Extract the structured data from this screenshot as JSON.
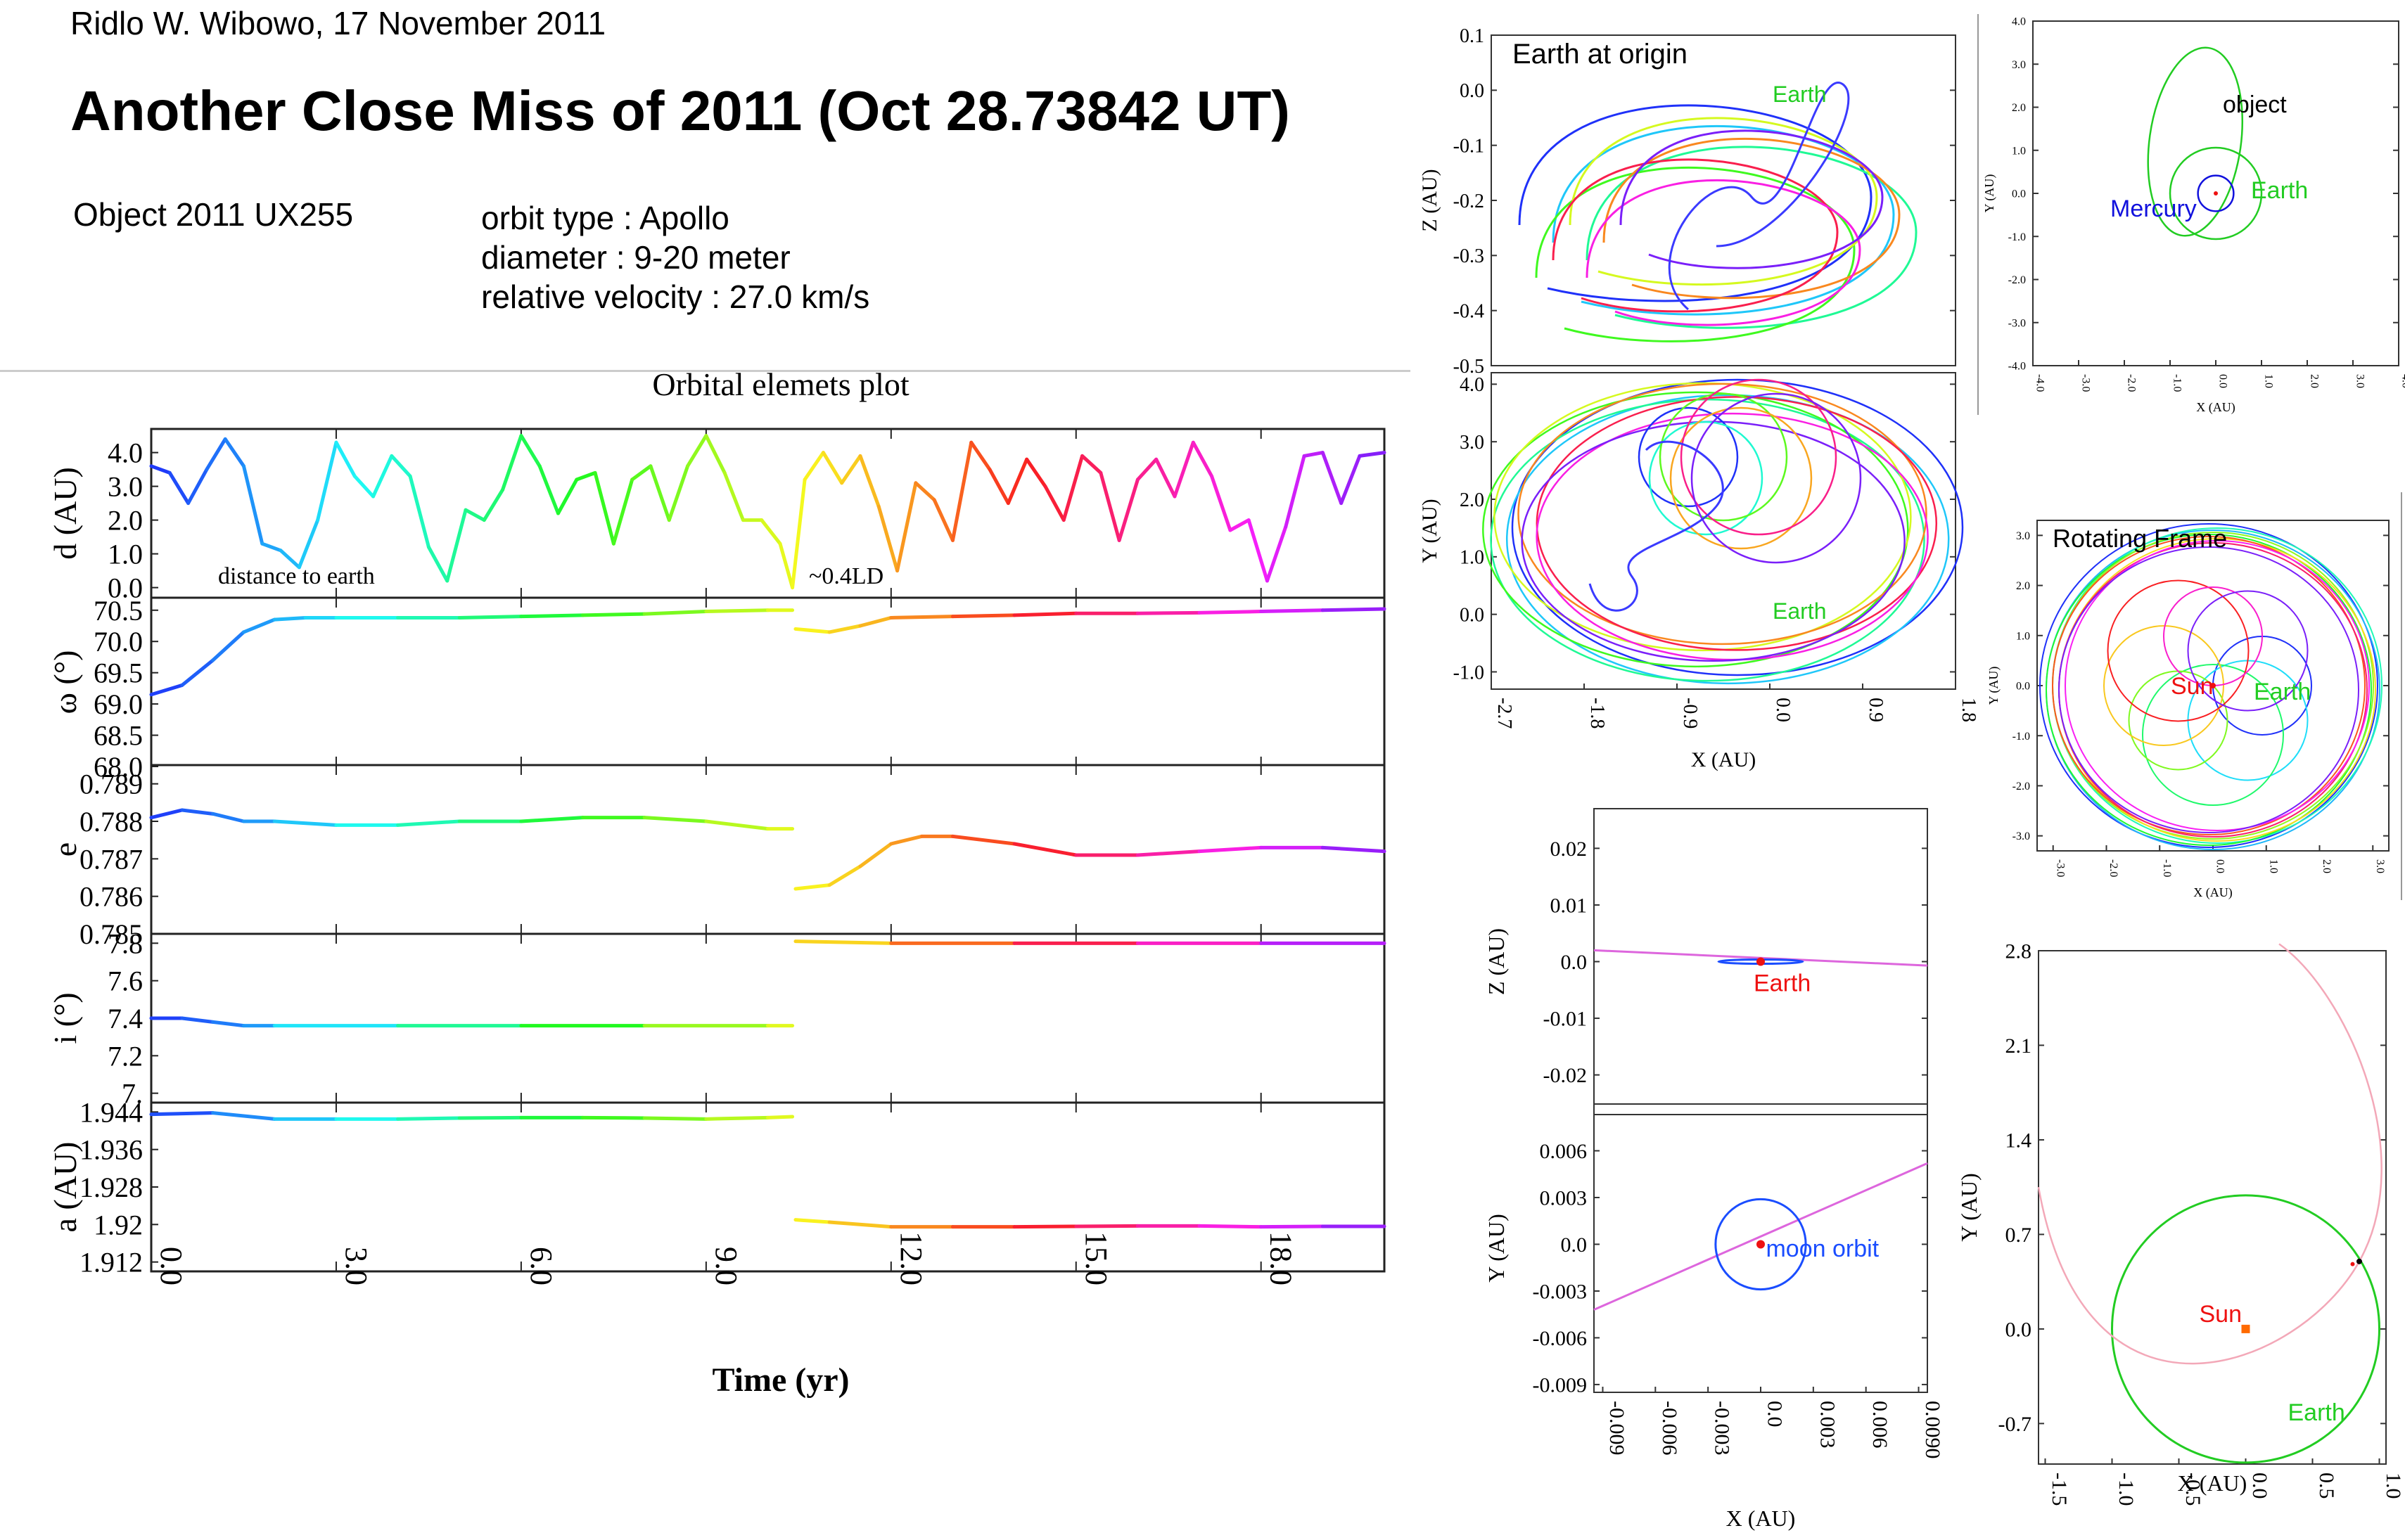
{
  "header": {
    "author_line": "Ridlo W. Wibowo, 17 November 2011",
    "title": "Another Close Miss of 2011 (Oct 28.73842 UT)",
    "object": "Object 2011 UX255",
    "orbit_type": "orbit type : Apollo",
    "diameter": "diameter  : 9-20 meter",
    "velocity": "relative velocity : 27.0 km/s"
  },
  "colors": {
    "hue_start": "#3a3aff",
    "hue_mid": "#ff2aa0",
    "hue_end": "#2fe88a",
    "earth_label": "#22cc22",
    "sun_label": "#ee1111",
    "mercury_label": "#1111dd",
    "moon_orbit": "#1a4dff",
    "object_path": "#dd66dd"
  },
  "chart_data": [
    {
      "id": "orbital_elements",
      "type": "line",
      "title": "Orbital elemets plot",
      "xlabel": "Time (yr)",
      "xlim": [
        0,
        20
      ],
      "xticks": [
        "0.0",
        "3.0",
        "6.0",
        "9.0",
        "12.0",
        "15.0",
        "18.0"
      ],
      "panels": [
        {
          "ylabel": "d (AU)",
          "ylim": [
            -0.3,
            4.7
          ],
          "yticks": [
            "4.0",
            "3.0",
            "2.0",
            "1.0",
            "0.0"
          ],
          "annotations": [
            "distance to earth",
            "~0.4LD"
          ],
          "x": [
            0,
            0.3,
            0.6,
            0.9,
            1.2,
            1.5,
            1.8,
            2.1,
            2.4,
            2.7,
            3.0,
            3.3,
            3.6,
            3.9,
            4.2,
            4.5,
            4.8,
            5.1,
            5.4,
            5.7,
            6.0,
            6.3,
            6.6,
            6.9,
            7.2,
            7.5,
            7.8,
            8.1,
            8.4,
            8.7,
            9.0,
            9.3,
            9.6,
            9.9,
            10.2,
            10.4,
            10.6,
            10.9,
            11.2,
            11.5,
            11.8,
            12.1,
            12.4,
            12.7,
            13.0,
            13.3,
            13.6,
            13.9,
            14.2,
            14.5,
            14.8,
            15.1,
            15.4,
            15.7,
            16.0,
            16.3,
            16.6,
            16.9,
            17.2,
            17.5,
            17.8,
            18.1,
            18.4,
            18.7,
            19.0,
            19.3,
            19.6,
            20.0
          ],
          "y": [
            3.6,
            3.4,
            2.5,
            3.5,
            4.4,
            3.6,
            1.3,
            1.1,
            0.6,
            2.0,
            4.3,
            3.3,
            2.7,
            3.9,
            3.3,
            1.2,
            0.2,
            2.3,
            2.0,
            2.9,
            4.5,
            3.6,
            2.2,
            3.2,
            3.4,
            1.3,
            3.2,
            3.6,
            2.0,
            3.6,
            4.5,
            3.4,
            2.0,
            2.0,
            1.3,
            0.0,
            3.2,
            4.0,
            3.1,
            3.9,
            2.4,
            0.5,
            3.1,
            2.6,
            1.4,
            4.3,
            3.5,
            2.5,
            3.8,
            3.0,
            2.0,
            3.9,
            3.4,
            1.4,
            3.2,
            3.8,
            2.7,
            4.3,
            3.3,
            1.7,
            2.0,
            0.2,
            1.8,
            3.9,
            4.0,
            2.5,
            3.9,
            4.0
          ]
        },
        {
          "ylabel": "ω (°)",
          "ylim": [
            68.0,
            70.7
          ],
          "yticks": [
            "70.5",
            "70.0",
            "69.5",
            "69.0",
            "68.5",
            "68.0"
          ],
          "x": [
            0,
            0.5,
            1.0,
            1.5,
            2.0,
            2.5,
            3.0,
            4.0,
            5.0,
            6.0,
            7.0,
            8.0,
            9.0,
            10.0,
            10.4,
            10.45,
            11.0,
            11.5,
            12.0,
            13.0,
            14.0,
            15.0,
            16.0,
            17.0,
            18.0,
            19.0,
            20.0
          ],
          "y": [
            69.15,
            69.3,
            69.7,
            70.15,
            70.35,
            70.38,
            70.38,
            70.38,
            70.38,
            70.4,
            70.42,
            70.44,
            70.48,
            70.5,
            70.5,
            70.2,
            70.15,
            70.25,
            70.38,
            70.4,
            70.42,
            70.45,
            70.45,
            70.46,
            70.48,
            70.5,
            70.52
          ]
        },
        {
          "ylabel": "e",
          "ylim": [
            0.785,
            0.7895
          ],
          "yticks": [
            "0.789",
            "0.788",
            "0.787",
            "0.786",
            "0.785"
          ],
          "x": [
            0,
            0.5,
            1.0,
            1.5,
            2.0,
            3.0,
            4.0,
            5.0,
            6.0,
            7.0,
            8.0,
            9.0,
            10.0,
            10.4,
            10.45,
            11.0,
            11.5,
            12.0,
            12.5,
            13.0,
            14.0,
            15.0,
            16.0,
            17.0,
            18.0,
            19.0,
            20.0
          ],
          "y": [
            0.7881,
            0.7883,
            0.7882,
            0.788,
            0.788,
            0.7879,
            0.7879,
            0.788,
            0.788,
            0.7881,
            0.7881,
            0.788,
            0.7878,
            0.7878,
            0.7862,
            0.7863,
            0.7868,
            0.7874,
            0.7876,
            0.7876,
            0.7874,
            0.7871,
            0.7871,
            0.7872,
            0.7873,
            0.7873,
            0.7872
          ]
        },
        {
          "ylabel": "i (°)",
          "ylim": [
            6.95,
            7.85
          ],
          "yticks": [
            "7.8",
            "7.6",
            "7.4",
            "7.2",
            "7."
          ],
          "x": [
            0,
            0.5,
            1.0,
            1.5,
            2.0,
            4.0,
            6.0,
            8.0,
            10.0,
            10.4,
            10.45,
            12.0,
            14.0,
            16.0,
            18.0,
            20.0
          ],
          "y": [
            7.4,
            7.4,
            7.38,
            7.36,
            7.36,
            7.36,
            7.36,
            7.36,
            7.36,
            7.36,
            7.81,
            7.8,
            7.8,
            7.8,
            7.8,
            7.8
          ]
        },
        {
          "ylabel": "a (AU)",
          "ylim": [
            1.91,
            1.946
          ],
          "yticks": [
            "1.944",
            "1.936",
            "1.928",
            "1.92",
            "1.912"
          ],
          "x": [
            0,
            1.0,
            2.0,
            3.0,
            4.0,
            5.0,
            6.0,
            7.0,
            8.0,
            9.0,
            10.0,
            10.4,
            10.45,
            11.0,
            12.0,
            13.0,
            14.0,
            15.0,
            16.0,
            17.0,
            18.0,
            19.0,
            20.0
          ],
          "y": [
            1.9435,
            1.9438,
            1.9425,
            1.9425,
            1.9425,
            1.9427,
            1.9428,
            1.9428,
            1.9427,
            1.9425,
            1.9428,
            1.943,
            1.921,
            1.9205,
            1.9195,
            1.9195,
            1.9195,
            1.9196,
            1.9197,
            1.9197,
            1.9195,
            1.9196,
            1.9196
          ]
        }
      ]
    },
    {
      "id": "xz_earth_origin",
      "type": "line",
      "annotation": "Earth at origin",
      "earth_label": "Earth",
      "ylabel": "Z (AU)",
      "ylim": [
        -0.5,
        0.1
      ],
      "yticks": [
        "0.1",
        "0.0",
        "-0.1",
        "-0.2",
        "-0.3",
        "-0.4",
        "-0.5"
      ]
    },
    {
      "id": "xy_earth_origin",
      "type": "line",
      "earth_label": "Earth",
      "ylabel": "Y (AU)",
      "xlabel": "X (AU)",
      "xlim": [
        -2.7,
        1.8
      ],
      "ylim": [
        -1.3,
        4.2
      ],
      "yticks": [
        "4.0",
        "3.0",
        "2.0",
        "1.0",
        "0.0",
        "-1.0"
      ],
      "xticks": [
        "-2.7",
        "-1.8",
        "-0.9",
        "0.0",
        "0.9",
        "1.8"
      ]
    },
    {
      "id": "heliocentric_small",
      "type": "line",
      "labels": {
        "object": "object",
        "earth": "Earth",
        "mercury": "Mercury"
      },
      "ylabel": "Y (AU)",
      "xlabel": "X (AU)",
      "xlim": [
        -4,
        4
      ],
      "ylim": [
        -4,
        4
      ],
      "yticks": [
        "4.0",
        "3.0",
        "2.0",
        "1.0",
        "0.0",
        "-1.0",
        "-2.0",
        "-3.0",
        "-4.0"
      ],
      "xticks": [
        "-4.0",
        "-3.0",
        "-2.0",
        "-1.0",
        "0.0",
        "1.0",
        "2.0",
        "3.0",
        "4.0"
      ]
    },
    {
      "id": "rotating_frame",
      "type": "line",
      "annotation": "Rotating Frame",
      "labels": {
        "sun": "Sun",
        "earth": "Earth"
      },
      "ylabel": "Y (AU)",
      "xlabel": "X (AU)",
      "xlim": [
        -3.3,
        3.3
      ],
      "ylim": [
        -3.3,
        3.3
      ],
      "yticks": [
        "3.0",
        "2.0",
        "1.0",
        "0.0",
        "-1.0",
        "-2.0",
        "-3.0"
      ],
      "xticks": [
        "-3.0",
        "-2.0",
        "-1.0",
        "0.0",
        "1.0",
        "2.0",
        "3.0"
      ]
    },
    {
      "id": "zoom_xz",
      "type": "line",
      "earth_label": "Earth",
      "ylabel": "Z (AU)",
      "ylim": [
        -0.027,
        0.027
      ],
      "yticks": [
        "0.02",
        "0.01",
        "0.0",
        "-0.01",
        "-0.02"
      ]
    },
    {
      "id": "zoom_xy",
      "type": "line",
      "moon_label": "moon orbit",
      "ylabel": "Y (AU)",
      "xlabel": "X (AU)",
      "xlim": [
        -0.0095,
        0.0095
      ],
      "ylim": [
        -0.0095,
        0.009
      ],
      "yticks": [
        "0.006",
        "0.003",
        "0.0",
        "-0.003",
        "-0.006",
        "-0.009"
      ],
      "xticks": [
        "-0.009",
        "-0.006",
        "-0.003",
        "0.0",
        "0.003",
        "0.006",
        "0.0090"
      ]
    },
    {
      "id": "heliocentric_large",
      "type": "line",
      "labels": {
        "sun": "Sun",
        "earth": "Earth"
      },
      "ylabel": "Y (AU)",
      "xlabel": "X (AU)",
      "xlim": [
        -1.55,
        1.05
      ],
      "ylim": [
        -1.0,
        2.8
      ],
      "yticks": [
        "2.8",
        "2.1",
        "1.4",
        "0.7",
        "0.0",
        "-0.7"
      ],
      "xticks": [
        "-1.5",
        "-1.0",
        "-0.5",
        "0.0",
        "0.5",
        "1.0"
      ]
    }
  ]
}
